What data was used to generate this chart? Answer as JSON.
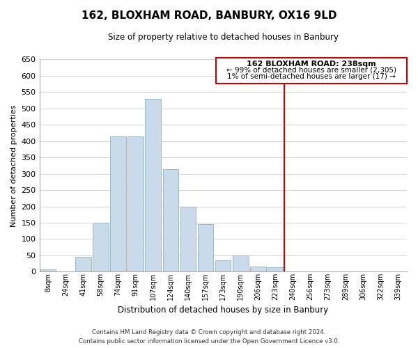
{
  "title": "162, BLOXHAM ROAD, BANBURY, OX16 9LD",
  "subtitle": "Size of property relative to detached houses in Banbury",
  "xlabel": "Distribution of detached houses by size in Banbury",
  "ylabel": "Number of detached properties",
  "bar_labels": [
    "8sqm",
    "24sqm",
    "41sqm",
    "58sqm",
    "74sqm",
    "91sqm",
    "107sqm",
    "124sqm",
    "140sqm",
    "157sqm",
    "173sqm",
    "190sqm",
    "206sqm",
    "223sqm",
    "240sqm",
    "256sqm",
    "273sqm",
    "289sqm",
    "306sqm",
    "322sqm",
    "339sqm"
  ],
  "bar_values": [
    8,
    0,
    45,
    150,
    415,
    415,
    530,
    315,
    200,
    145,
    35,
    50,
    15,
    13,
    0,
    0,
    0,
    0,
    0,
    0,
    0
  ],
  "bar_color": "#c9daea",
  "bar_edgecolor": "#9ab8cc",
  "ylim": [
    0,
    650
  ],
  "yticks": [
    0,
    50,
    100,
    150,
    200,
    250,
    300,
    350,
    400,
    450,
    500,
    550,
    600,
    650
  ],
  "vline_color": "#cc0000",
  "annotation_title": "162 BLOXHAM ROAD: 238sqm",
  "annotation_line1": "← 99% of detached houses are smaller (2,305)",
  "annotation_line2": "1% of semi-detached houses are larger (17) →",
  "annotation_box_color": "#cc0000",
  "footer_line1": "Contains HM Land Registry data © Crown copyright and database right 2024.",
  "footer_line2": "Contains public sector information licensed under the Open Government Licence v3.0.",
  "background_color": "#ffffff",
  "grid_color": "#cccccc"
}
